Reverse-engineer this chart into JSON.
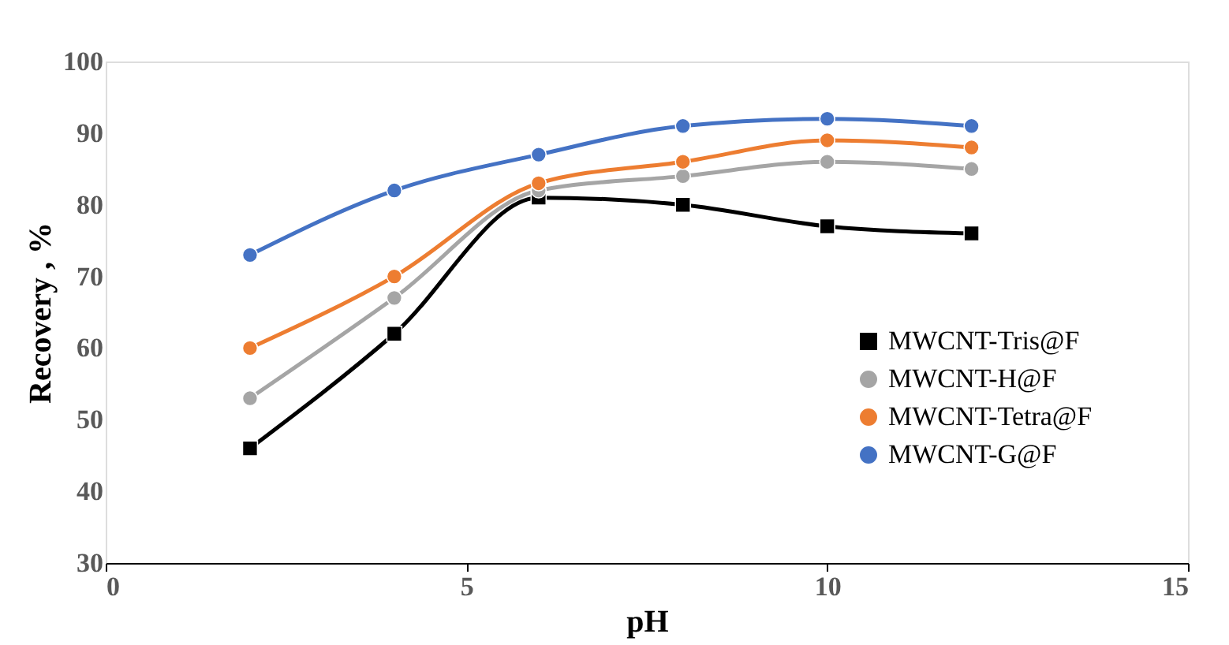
{
  "chart_data": {
    "type": "line",
    "xlabel": "pH",
    "ylabel": "Recovery , %",
    "x": [
      2,
      4,
      6,
      8,
      10,
      12
    ],
    "series": [
      {
        "name": "MWCNT-Tris@F",
        "color": "#000000",
        "marker": "square",
        "values": [
          46,
          62,
          81,
          80,
          77,
          76
        ]
      },
      {
        "name": "MWCNT-H@F",
        "color": "#a5a5a5",
        "marker": "circle",
        "values": [
          53,
          67,
          82,
          84,
          86,
          85
        ]
      },
      {
        "name": "MWCNT-Tetra@F",
        "color": "#ed7d31",
        "marker": "circle",
        "values": [
          60,
          70,
          83,
          86,
          89,
          88
        ]
      },
      {
        "name": "MWCNT-G@F",
        "color": "#4472c4",
        "marker": "circle",
        "values": [
          73,
          82,
          87,
          91,
          92,
          91
        ]
      }
    ],
    "xlim": [
      0,
      15
    ],
    "xticks": [
      0,
      5,
      10,
      15
    ],
    "ylim": [
      30,
      100
    ],
    "yticks": [
      30,
      40,
      50,
      60,
      70,
      80,
      90,
      100
    ],
    "grid": false,
    "legend": "bottom right",
    "line_style": "solid"
  }
}
